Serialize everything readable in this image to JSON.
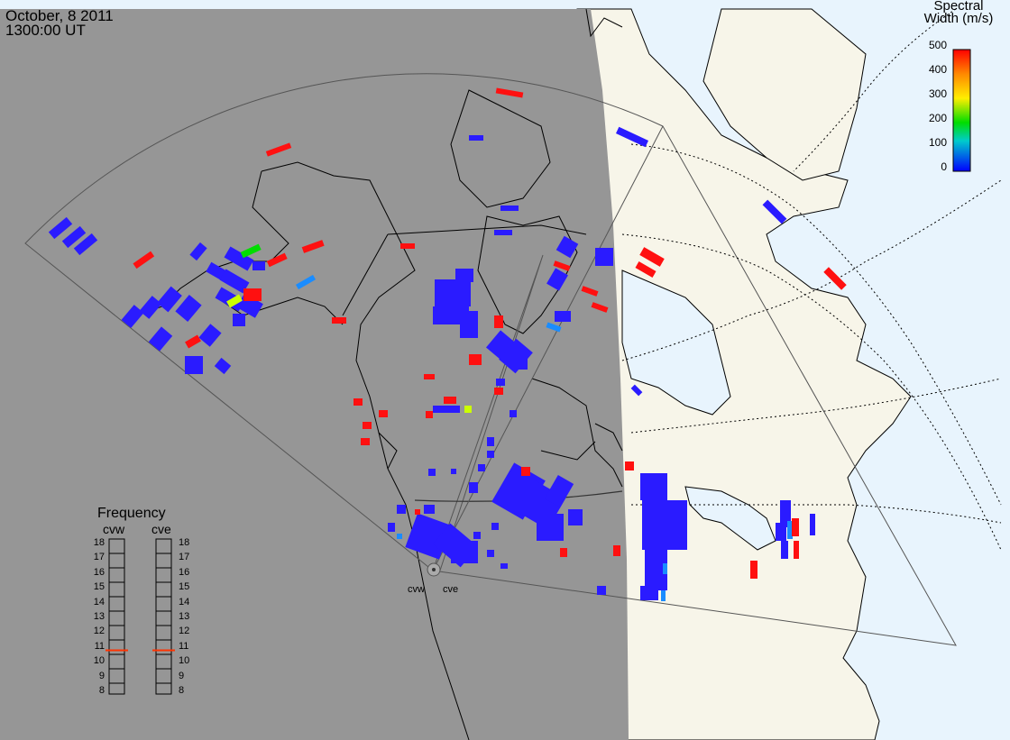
{
  "header": {
    "date": "October, 8 2011",
    "time": "1300:00 UT"
  },
  "colorbar": {
    "title_line1": "Spectral",
    "title_line2": "Width (m/s)",
    "ticks": [
      "500",
      "400",
      "300",
      "200",
      "100",
      "0"
    ],
    "colors": [
      "#ff0000",
      "#ff8800",
      "#ffee00",
      "#00dd00",
      "#00cccc",
      "#0000ff"
    ]
  },
  "radars": {
    "west": "cvw",
    "east": "cve"
  },
  "frequency_panel": {
    "title": "Frequency",
    "columns": [
      "cvw",
      "cve"
    ],
    "levels": [
      "18",
      "17",
      "16",
      "15",
      "14",
      "13",
      "12",
      "11",
      "10",
      "9",
      "8"
    ],
    "current_mhz": {
      "cvw": 10.6,
      "cve": 10.6
    },
    "marker_color": "#ff3300"
  },
  "colors": {
    "night": "#969696",
    "day_land": "#f7f5e9",
    "day_sea": "#e8f4fd",
    "low_width": "#2a1bff",
    "high_width": "#ff1010"
  }
}
